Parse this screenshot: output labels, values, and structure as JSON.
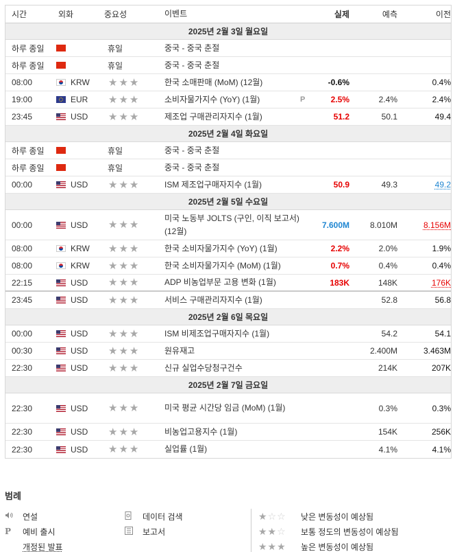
{
  "header": {
    "time": "시간",
    "currency": "외화",
    "importance": "중요성",
    "event": "이벤트",
    "actual": "실제",
    "forecast": "예측",
    "previous": "이전"
  },
  "days": [
    {
      "date": "2025년 2월 3일 월요일",
      "events": [
        {
          "time": "하루 종일",
          "flag": "cn",
          "currency": "",
          "holiday": "휴일",
          "stars": 0,
          "event": "중국 - 중국 춘절",
          "note": "",
          "actual": "",
          "actual_color": "",
          "forecast": "",
          "previous": "",
          "previous_color": "",
          "previous_revised": false
        },
        {
          "time": "하루 종일",
          "flag": "cn",
          "currency": "",
          "holiday": "휴일",
          "stars": 0,
          "event": "중국 - 중국 춘절",
          "note": "",
          "actual": "",
          "actual_color": "",
          "forecast": "",
          "previous": "",
          "previous_color": "",
          "previous_revised": false
        },
        {
          "time": "08:00",
          "flag": "kr",
          "currency": "KRW",
          "holiday": "",
          "stars": 3,
          "event": "한국 소매판매 (MoM) (12월)",
          "note": "",
          "actual": "-0.6%",
          "actual_color": "black",
          "forecast": "",
          "previous": "0.4%",
          "previous_color": "black",
          "previous_revised": false
        },
        {
          "time": "19:00",
          "flag": "eu",
          "currency": "EUR",
          "holiday": "",
          "stars": 3,
          "event": "소비자물가지수 (YoY) (1월)",
          "note": "P",
          "actual": "2.5%",
          "actual_color": "red",
          "forecast": "2.4%",
          "previous": "2.4%",
          "previous_color": "black",
          "previous_revised": false
        },
        {
          "time": "23:45",
          "flag": "us",
          "currency": "USD",
          "holiday": "",
          "stars": 3,
          "event": "제조업 구매관리자지수 (1월)",
          "note": "",
          "actual": "51.2",
          "actual_color": "red",
          "forecast": "50.1",
          "previous": "49.4",
          "previous_color": "black",
          "previous_revised": false
        }
      ]
    },
    {
      "date": "2025년 2월 4일 화요일",
      "events": [
        {
          "time": "하루 종일",
          "flag": "cn",
          "currency": "",
          "holiday": "휴일",
          "stars": 0,
          "event": "중국 - 중국 춘절",
          "note": "",
          "actual": "",
          "actual_color": "",
          "forecast": "",
          "previous": "",
          "previous_color": "",
          "previous_revised": false
        },
        {
          "time": "하루 종일",
          "flag": "cn",
          "currency": "",
          "holiday": "휴일",
          "stars": 0,
          "event": "중국 - 중국 춘절",
          "note": "",
          "actual": "",
          "actual_color": "",
          "forecast": "",
          "previous": "",
          "previous_color": "",
          "previous_revised": false
        },
        {
          "time": "00:00",
          "flag": "us",
          "currency": "USD",
          "holiday": "",
          "stars": 3,
          "event": "ISM 제조업구매자지수 (1월)",
          "note": "",
          "actual": "50.9",
          "actual_color": "red",
          "forecast": "49.3",
          "previous": "49.2",
          "previous_color": "blue",
          "previous_revised": true
        }
      ]
    },
    {
      "date": "2025년 2월 5일 수요일",
      "events": [
        {
          "time": "00:00",
          "flag": "us",
          "currency": "USD",
          "holiday": "",
          "stars": 3,
          "event": "미국 노동부 JOLTS (구인, 이직 보고서) (12월)",
          "note": "",
          "actual": "7.600M",
          "actual_color": "blue",
          "forecast": "8.010M",
          "previous": "8.156M",
          "previous_color": "red",
          "previous_revised": true
        },
        {
          "time": "08:00",
          "flag": "kr",
          "currency": "KRW",
          "holiday": "",
          "stars": 3,
          "event": "한국 소비자물가지수 (YoY) (1월)",
          "note": "",
          "actual": "2.2%",
          "actual_color": "red",
          "forecast": "2.0%",
          "previous": "1.9%",
          "previous_color": "black",
          "previous_revised": false
        },
        {
          "time": "08:00",
          "flag": "kr",
          "currency": "KRW",
          "holiday": "",
          "stars": 3,
          "event": "한국 소비자물가지수 (MoM) (1월)",
          "note": "",
          "actual": "0.7%",
          "actual_color": "red",
          "forecast": "0.4%",
          "previous": "0.4%",
          "previous_color": "black",
          "previous_revised": false
        },
        {
          "time": "22:15",
          "flag": "us",
          "currency": "USD",
          "holiday": "",
          "stars": 3,
          "event": "ADP 비농업부문 고용 변화 (1월)",
          "note": "",
          "actual": "183K",
          "actual_color": "red",
          "forecast": "148K",
          "previous": "176K",
          "previous_color": "red",
          "previous_revised": true,
          "thick": true
        },
        {
          "time": "23:45",
          "flag": "us",
          "currency": "USD",
          "holiday": "",
          "stars": 3,
          "event": "서비스 구매관리자지수 (1월)",
          "note": "",
          "actual": "",
          "actual_color": "",
          "forecast": "52.8",
          "previous": "56.8",
          "previous_color": "black",
          "previous_revised": false
        }
      ]
    },
    {
      "date": "2025년 2월 6일 목요일",
      "events": [
        {
          "time": "00:00",
          "flag": "us",
          "currency": "USD",
          "holiday": "",
          "stars": 3,
          "event": "ISM 비제조업구매자지수 (1월)",
          "note": "",
          "actual": "",
          "actual_color": "",
          "forecast": "54.2",
          "previous": "54.1",
          "previous_color": "black",
          "previous_revised": false
        },
        {
          "time": "00:30",
          "flag": "us",
          "currency": "USD",
          "holiday": "",
          "stars": 3,
          "event": "원유재고",
          "note": "",
          "actual": "",
          "actual_color": "",
          "forecast": "2.400M",
          "previous": "3.463M",
          "previous_color": "black",
          "previous_revised": false
        },
        {
          "time": "22:30",
          "flag": "us",
          "currency": "USD",
          "holiday": "",
          "stars": 3,
          "event": "신규 실업수당청구건수",
          "note": "",
          "actual": "",
          "actual_color": "",
          "forecast": "214K",
          "previous": "207K",
          "previous_color": "black",
          "previous_revised": false
        }
      ]
    },
    {
      "date": "2025년 2월 7일 금요일",
      "events": [
        {
          "time": "22:30",
          "flag": "us",
          "currency": "USD",
          "holiday": "",
          "stars": 3,
          "event": "미국 평균 시간당 임금 (MoM) (1월)",
          "note": "",
          "actual": "",
          "actual_color": "",
          "forecast": "0.3%",
          "previous": "0.3%",
          "previous_color": "black",
          "previous_revised": false
        },
        {
          "time": "22:30",
          "flag": "us",
          "currency": "USD",
          "holiday": "",
          "stars": 3,
          "event": "비농업고용지수 (1월)",
          "note": "",
          "actual": "",
          "actual_color": "",
          "forecast": "154K",
          "previous": "256K",
          "previous_color": "black",
          "previous_revised": false
        },
        {
          "time": "22:30",
          "flag": "us",
          "currency": "USD",
          "holiday": "",
          "stars": 3,
          "event": "실업률 (1월)",
          "note": "",
          "actual": "",
          "actual_color": "",
          "forecast": "4.1%",
          "previous": "4.1%",
          "previous_color": "black",
          "previous_revised": false
        }
      ]
    }
  ],
  "legend": {
    "title": "범례",
    "speech": {
      "icon": "speaker-icon",
      "label": "연설"
    },
    "preliminary": {
      "icon": "P",
      "label": "예비 출시"
    },
    "revised": {
      "label": "개정된 발표"
    },
    "data_search": {
      "icon": "search-data-icon",
      "label": "데이터 검색"
    },
    "report": {
      "icon": "report-icon",
      "label": "보고서"
    },
    "low": {
      "stars": 1,
      "label": "낮은 변동성이 예상됨"
    },
    "medium": {
      "stars": 2,
      "label": "보통 정도의 변동성이 예상됨"
    },
    "high": {
      "stars": 3,
      "label": "높은 변동성이 예상됨"
    }
  },
  "colors": {
    "positive": "#e60000",
    "negative": "#1f86d1",
    "star": "#a8a8a8",
    "date_row_bg": "#eeeeee"
  }
}
